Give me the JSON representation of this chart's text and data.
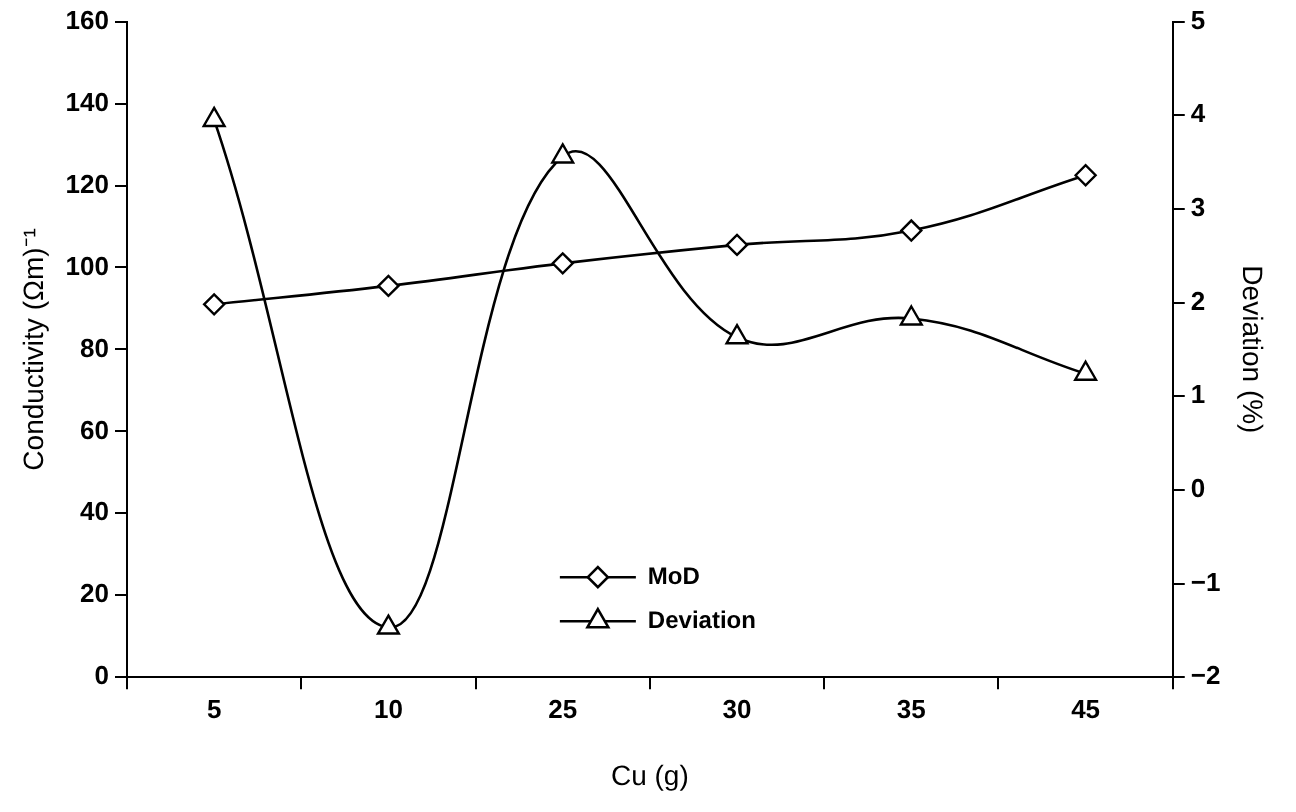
{
  "chart_data": {
    "type": "line",
    "xlabel": "Cu (g)",
    "ylabel": "Conductivity (Ωm)⁻¹",
    "y2label": "Deviation (%)",
    "categories": [
      "5",
      "10",
      "25",
      "30",
      "35",
      "45"
    ],
    "series": [
      {
        "name": "MoD",
        "color": "#000000",
        "marker": "diamond",
        "values": [
          91,
          95.5,
          101,
          105.5,
          109,
          122.5
        ]
      },
      {
        "name": "Deviation",
        "color": "#000000",
        "marker": "triangle",
        "axis": "y2",
        "values": [
          3.95,
          -1.47,
          3.56,
          1.63,
          1.83,
          1.24
        ]
      }
    ],
    "ylim": [
      0,
      160
    ],
    "yticks": [
      0,
      20,
      40,
      60,
      80,
      100,
      120,
      140,
      160
    ],
    "y2lim": [
      -2,
      5
    ],
    "y2ticks": [
      -2,
      -1,
      0,
      1,
      2,
      3,
      4,
      5
    ],
    "grid": false,
    "legend": "bottom",
    "line_style": "solid"
  }
}
